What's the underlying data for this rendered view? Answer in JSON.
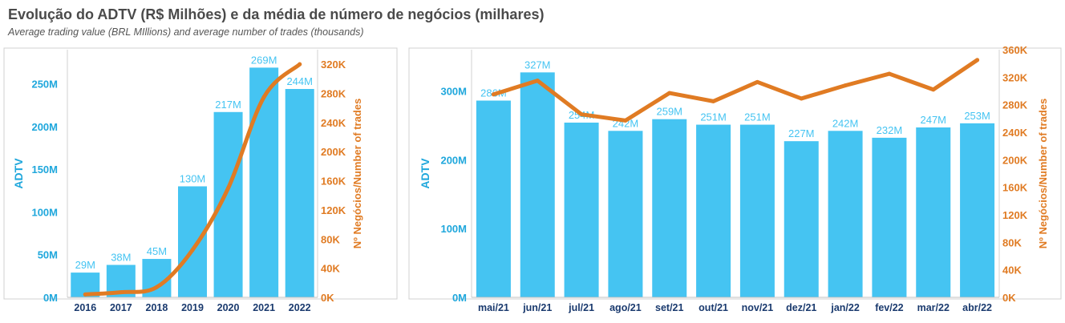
{
  "header": {
    "title": "Evolução do ADTV (R$ Milhões) e da média de número de negócios (milhares)",
    "subtitle": "Average trading value (BRL MIllions) and average number of trades (thousands)"
  },
  "colors": {
    "bar": "#45c4f2",
    "line": "#e07b23",
    "left_axis": "#1fa7dc",
    "right_axis": "#e07b23",
    "x_axis": "#1a3a6e",
    "gridline": "#d0d0d0"
  },
  "chart_data": [
    {
      "type": "bar",
      "categories": [
        "2016",
        "2017",
        "2018",
        "2019",
        "2020",
        "2021",
        "2022"
      ],
      "series": [
        {
          "values": [
            29,
            38,
            45,
            130,
            217,
            269,
            244
          ],
          "labels": [
            "29M",
            "38M",
            "45M",
            "130M",
            "217M",
            "269M",
            "244M"
          ],
          "type": "bar",
          "axis": "left"
        },
        {
          "values": [
            4,
            7,
            14,
            65,
            150,
            275,
            320
          ],
          "type": "line",
          "axis": "right"
        }
      ],
      "ylabel": "ADTV",
      "y2label": "Nº Negócios/Number of trades",
      "ylim": [
        0,
        290
      ],
      "y2lim": [
        0,
        340
      ],
      "yticks": [
        0,
        50,
        100,
        150,
        200,
        250
      ],
      "ytick_labels": [
        "0M",
        "50M",
        "100M",
        "150M",
        "200M",
        "250M"
      ],
      "y2ticks": [
        0,
        40,
        80,
        120,
        160,
        200,
        240,
        280,
        320
      ],
      "y2tick_labels": [
        "0K",
        "40K",
        "80K",
        "120K",
        "160K",
        "200K",
        "240K",
        "280K",
        "320K"
      ]
    },
    {
      "type": "bar",
      "categories": [
        "mai/21",
        "jun/21",
        "jul/21",
        "ago/21",
        "set/21",
        "out/21",
        "nov/21",
        "dez/21",
        "jan/22",
        "fev/22",
        "mar/22",
        "abr/22"
      ],
      "series": [
        {
          "values": [
            286,
            327,
            254,
            242,
            259,
            251,
            251,
            227,
            242,
            232,
            247,
            253
          ],
          "labels": [
            "286M",
            "327M",
            "254M",
            "242M",
            "259M",
            "251M",
            "251M",
            "227M",
            "242M",
            "232M",
            "247M",
            "253M"
          ],
          "type": "bar",
          "axis": "left"
        },
        {
          "values": [
            295,
            315,
            266,
            257,
            297,
            285,
            313,
            289,
            308,
            325,
            302,
            345
          ],
          "type": "line",
          "axis": "right"
        }
      ],
      "ylabel": "ADTV",
      "y2label": "Nº Negócios/Number of trades",
      "ylim": [
        0,
        360
      ],
      "y2lim": [
        0,
        360
      ],
      "yticks": [
        0,
        100,
        200,
        300
      ],
      "ytick_labels": [
        "0M",
        "100M",
        "200M",
        "300M"
      ],
      "y2ticks": [
        0,
        40,
        80,
        120,
        160,
        200,
        240,
        280,
        320,
        360
      ],
      "y2tick_labels": [
        "0K",
        "40K",
        "80K",
        "120K",
        "160K",
        "200K",
        "240K",
        "280K",
        "320K",
        "360K"
      ]
    }
  ]
}
